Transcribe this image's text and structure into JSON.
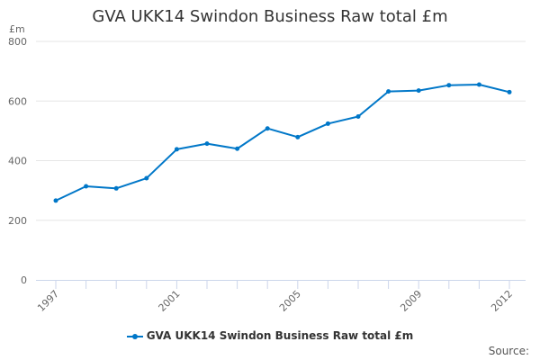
{
  "chart_data": {
    "type": "line",
    "title": "GVA UKK14 Swindon Business Raw total £m",
    "ylabel": "£m",
    "xlabel": "",
    "ylim": [
      0,
      800
    ],
    "yticks": [
      0,
      200,
      400,
      600,
      800
    ],
    "xticks": [
      "1997",
      "2001",
      "2005",
      "2009",
      "2012"
    ],
    "grid": true,
    "legend_placement": "bottom",
    "x": [
      1997,
      1998,
      1999,
      2000,
      2001,
      2002,
      2003,
      2004,
      2005,
      2006,
      2007,
      2008,
      2009,
      2010,
      2011,
      2012
    ],
    "series": [
      {
        "name": "GVA UKK14 Swindon Business Raw total £m",
        "color": "#0077c8",
        "values": [
          266,
          314,
          307,
          341,
          438,
          457,
          440,
          508,
          479,
          524,
          548,
          632,
          635,
          653,
          655,
          630
        ]
      }
    ]
  },
  "source_label": "Source:"
}
